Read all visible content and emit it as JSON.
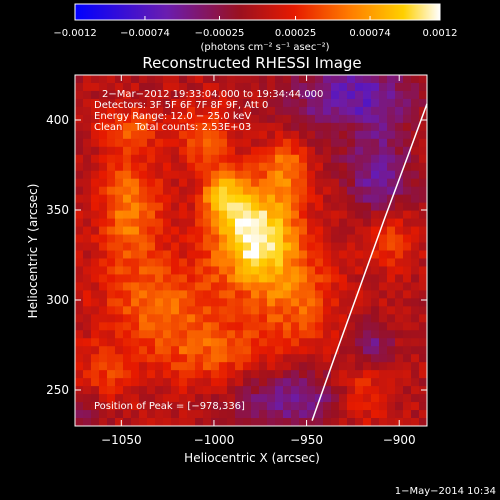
{
  "colors": {
    "background": "#000000",
    "text": "#ffffff",
    "limb_line": "#ffffff"
  },
  "colorbar": {
    "tick_labels": [
      "-0.0012",
      "-0.00074",
      "-0.00025",
      "0.00025",
      "0.00074",
      "0.0012"
    ],
    "min": -0.0012,
    "max": 0.0012,
    "colormap": "blue-purple-red-orange-yellow-white"
  },
  "chart_data": {
    "type": "heatmap",
    "title": "Reconstructed RHESSI Image",
    "xlabel": "Heliocentric X (arcsec)",
    "ylabel": "Heliocentric Y (arcsec)",
    "xlim": [
      -1075,
      -885
    ],
    "ylim": [
      230,
      425
    ],
    "x_ticks": [
      -1050,
      -1000,
      -950,
      -900
    ],
    "y_ticks": [
      250,
      300,
      350,
      400
    ],
    "x_tick_labels": [
      "−1050",
      "−1000",
      "−950",
      "−900"
    ],
    "y_tick_labels": [
      "250",
      "300",
      "350",
      "400"
    ],
    "grid": false,
    "annotations": {
      "time_range": "2−Mar−2012 19:33:04.000 to 19:34:44.000",
      "detectors": "Detectors: 3F 5F 6F 7F 8F 9F, Att 0",
      "energy_range": "Energy Range: 12.0 − 25.0 keV",
      "clean_counts": "Clean    Total counts: 2.53E+03",
      "peak_position": "Position of Peak = [−978,336]"
    },
    "peak": [
      -978,
      336
    ],
    "sources": [
      {
        "x": -978,
        "y": 336,
        "sx": 16,
        "sy": 20,
        "amp": 1.0
      },
      {
        "x": -995,
        "y": 358,
        "sx": 8,
        "sy": 9,
        "amp": 0.55
      },
      {
        "x": -1045,
        "y": 350,
        "sx": 12,
        "sy": 22,
        "amp": 0.5
      },
      {
        "x": -1030,
        "y": 298,
        "sx": 22,
        "sy": 18,
        "amp": 0.4
      },
      {
        "x": -960,
        "y": 375,
        "sx": 9,
        "sy": 12,
        "amp": 0.45
      },
      {
        "x": -1005,
        "y": 390,
        "sx": 10,
        "sy": 12,
        "amp": 0.42
      },
      {
        "x": -1045,
        "y": 395,
        "sx": 10,
        "sy": 8,
        "amp": 0.35
      },
      {
        "x": -955,
        "y": 300,
        "sx": 16,
        "sy": 20,
        "amp": 0.38
      },
      {
        "x": -1000,
        "y": 270,
        "sx": 22,
        "sy": 14,
        "amp": 0.35
      },
      {
        "x": -905,
        "y": 335,
        "sx": 9,
        "sy": 12,
        "amp": 0.35
      },
      {
        "x": -1060,
        "y": 258,
        "sx": 10,
        "sy": 12,
        "amp": 0.3
      },
      {
        "x": -920,
        "y": 248,
        "sx": 10,
        "sy": 12,
        "amp": 0.3
      },
      {
        "x": -930,
        "y": 395,
        "sx": 7,
        "sy": 8,
        "amp": 0.25
      }
    ],
    "negative_regions": [
      {
        "x": -925,
        "y": 410,
        "sx": 22,
        "sy": 18,
        "amp": 0.55
      },
      {
        "x": -910,
        "y": 365,
        "sx": 12,
        "sy": 14,
        "amp": 0.45
      },
      {
        "x": -960,
        "y": 245,
        "sx": 22,
        "sy": 12,
        "amp": 0.45
      },
      {
        "x": -915,
        "y": 275,
        "sx": 8,
        "sy": 8,
        "amp": 0.4
      },
      {
        "x": -1068,
        "y": 240,
        "sx": 8,
        "sy": 10,
        "amp": 0.25
      }
    ],
    "limb_curve": {
      "points": [
        [
          -947,
          233
        ],
        [
          -935,
          268
        ],
        [
          -922,
          305
        ],
        [
          -908,
          345
        ],
        [
          -895,
          381
        ],
        [
          -885,
          409
        ]
      ]
    },
    "footer_timestamp": "1−May−2014 10:34",
    "colorbar_unit_label": "(photons cm⁻² s⁻¹ asec⁻²)"
  }
}
